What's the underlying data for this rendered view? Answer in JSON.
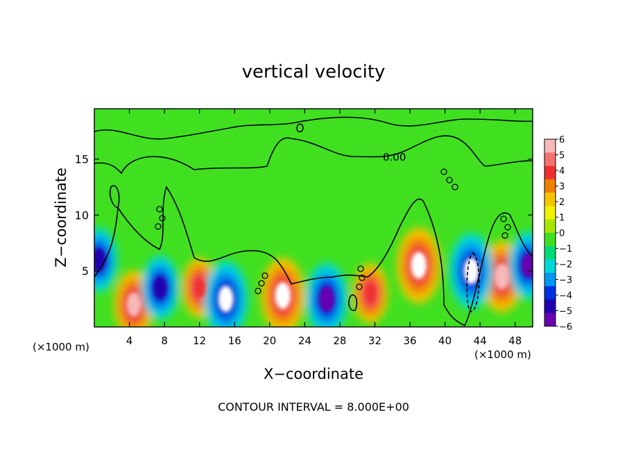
{
  "chart_data": {
    "type": "heatmap",
    "title": "vertical velocity",
    "xlabel": "X−coordinate",
    "ylabel": "Z−coordinate",
    "x_unit_left": "(×1000 m)",
    "x_unit_right": "(×1000 m)",
    "footer": "CONTOUR INTERVAL = 8.000E+00",
    "contour_label": "0.00",
    "xlim": [
      0,
      50
    ],
    "ylim": [
      0,
      19.5
    ],
    "x_ticks": [
      4,
      8,
      12,
      16,
      20,
      24,
      28,
      32,
      36,
      40,
      44,
      48
    ],
    "y_ticks": [
      5,
      10,
      15
    ],
    "colorbar": {
      "ticks": [
        "6",
        "5",
        "4",
        "3",
        "2",
        "1",
        "0",
        "−1",
        "−2",
        "−3",
        "−4",
        "−5",
        "−6"
      ],
      "colors": [
        "#f7b8b8",
        "#f57070",
        "#f03030",
        "#f08000",
        "#f5c400",
        "#f0f000",
        "#a8e800",
        "#40e020",
        "#00dc78",
        "#00d8d8",
        "#0098f0",
        "#0030e0",
        "#2000b0",
        "#6800b0"
      ]
    },
    "features": [
      {
        "kind": "updraft",
        "x": 4.5,
        "z": 2.0,
        "value": 6
      },
      {
        "kind": "updraft",
        "x": 12.0,
        "z": 3.5,
        "value": 4
      },
      {
        "kind": "updraft",
        "x": 21.5,
        "z": 2.8,
        "value": 8
      },
      {
        "kind": "updraft",
        "x": 31.5,
        "z": 3.0,
        "value": 4
      },
      {
        "kind": "updraft",
        "x": 37.0,
        "z": 5.5,
        "value": 8
      },
      {
        "kind": "updraft",
        "x": 46.5,
        "z": 4.5,
        "value": 7
      },
      {
        "kind": "downdraft",
        "x": 0.5,
        "z": 6.0,
        "value": -5
      },
      {
        "kind": "downdraft",
        "x": 7.5,
        "z": 3.5,
        "value": -5
      },
      {
        "kind": "downdraft",
        "x": 15.0,
        "z": 2.5,
        "value": -8
      },
      {
        "kind": "downdraft",
        "x": 26.5,
        "z": 2.5,
        "value": -7
      },
      {
        "kind": "downdraft",
        "x": 43.0,
        "z": 5.0,
        "value": -8
      },
      {
        "kind": "downdraft",
        "x": 49.5,
        "z": 5.5,
        "value": -6
      }
    ]
  }
}
